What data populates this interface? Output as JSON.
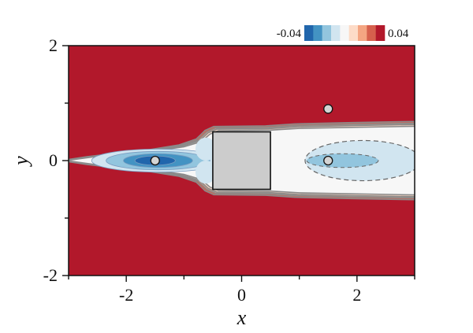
{
  "chart_data": {
    "type": "heatmap",
    "title": "",
    "xlabel": "x",
    "ylabel": "y",
    "xlim": [
      -3,
      3
    ],
    "ylim": [
      -2,
      2
    ],
    "x_ticks": [
      -2,
      0,
      2
    ],
    "y_ticks": [
      -2,
      0,
      2
    ],
    "x_tick_labels": [
      "-2",
      "0",
      "2"
    ],
    "y_tick_labels": [
      "-2",
      "0",
      "2"
    ],
    "colorbar": {
      "min": -0.04,
      "max": 0.04,
      "min_label": "-0.04",
      "max_label": "0.04",
      "colors": [
        "#2166ac",
        "#4393c3",
        "#92c5de",
        "#d1e5f0",
        "#f7f7f7",
        "#fddbc7",
        "#f4a582",
        "#d6604d",
        "#b2182b"
      ],
      "position": "top-right"
    },
    "background_color": "#b2182b",
    "obstacle": {
      "shape": "square",
      "x": [
        -0.5,
        0.5
      ],
      "y": [
        -0.5,
        0.5
      ],
      "color": "#cccccc"
    },
    "markers": [
      {
        "x": -1.5,
        "y": 0
      },
      {
        "x": 1.5,
        "y": 0
      },
      {
        "x": 1.5,
        "y": 0.9
      }
    ],
    "upstream_minimum": {
      "x": -1.5,
      "y": 0,
      "value": -0.04
    },
    "wake_negative_region": {
      "x": [
        1.0,
        3.0
      ],
      "y": [
        -0.35,
        0.35
      ]
    }
  }
}
